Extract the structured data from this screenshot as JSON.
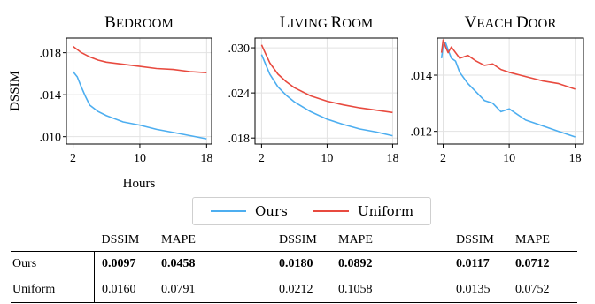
{
  "chart_data": [
    {
      "type": "line",
      "title": "Bedroom",
      "xlabel": "Hours",
      "ylabel": "DSSIM",
      "xlim": [
        1.2,
        18.6
      ],
      "ylim": [
        0.0093,
        0.0194
      ],
      "xticks": [
        2,
        10,
        18
      ],
      "xtick_labels": [
        "2",
        "10",
        "18"
      ],
      "yticks": [
        0.01,
        0.014,
        0.018
      ],
      "ytick_labels": [
        ".010",
        ".014",
        ".018"
      ],
      "grid": true,
      "series": [
        {
          "name": "Ours",
          "color": "#4daef0",
          "x": [
            2,
            2.5,
            3,
            3.5,
            4,
            5,
            6,
            8,
            10,
            12,
            14,
            16,
            18
          ],
          "y": [
            0.0162,
            0.0157,
            0.0147,
            0.0138,
            0.013,
            0.0124,
            0.012,
            0.0114,
            0.0111,
            0.0107,
            0.0104,
            0.0101,
            0.0098
          ]
        },
        {
          "name": "Uniform",
          "color": "#e84a3f",
          "x": [
            2,
            3,
            4,
            5,
            6,
            8,
            10,
            12,
            14,
            16,
            18
          ],
          "y": [
            0.0186,
            0.018,
            0.0176,
            0.0173,
            0.0171,
            0.0169,
            0.0167,
            0.0165,
            0.0164,
            0.0162,
            0.0161
          ]
        }
      ]
    },
    {
      "type": "line",
      "title": "Living Room",
      "xlabel": "",
      "ylabel": "",
      "xlim": [
        1.2,
        18.6
      ],
      "ylim": [
        0.0172,
        0.0313
      ],
      "xticks": [
        2,
        10,
        18
      ],
      "xtick_labels": [
        "2",
        "10",
        "18"
      ],
      "yticks": [
        0.018,
        0.024,
        0.03
      ],
      "ytick_labels": [
        ".018",
        ".024",
        ".030"
      ],
      "grid": true,
      "series": [
        {
          "name": "Ours",
          "color": "#4daef0",
          "x": [
            2,
            2.5,
            3,
            4,
            5,
            6,
            8,
            10,
            12,
            14,
            16,
            18
          ],
          "y": [
            0.0291,
            0.0278,
            0.0265,
            0.0248,
            0.0237,
            0.0228,
            0.0215,
            0.0205,
            0.0198,
            0.0192,
            0.0188,
            0.0183
          ]
        },
        {
          "name": "Uniform",
          "color": "#e84a3f",
          "x": [
            2,
            2.5,
            3,
            4,
            5,
            6,
            8,
            10,
            12,
            14,
            16,
            18
          ],
          "y": [
            0.0304,
            0.0292,
            0.028,
            0.0265,
            0.0255,
            0.0247,
            0.0236,
            0.0229,
            0.0224,
            0.022,
            0.0217,
            0.0214
          ]
        }
      ]
    },
    {
      "type": "line",
      "title": "Veach Door",
      "xlabel": "",
      "ylabel": "",
      "xlim": [
        1.3,
        19.0
      ],
      "ylim": [
        0.01155,
        0.01532
      ],
      "xticks": [
        2,
        10,
        18
      ],
      "xtick_labels": [
        "2",
        "10",
        "18"
      ],
      "yticks": [
        0.012,
        0.014
      ],
      "ytick_labels": [
        ".012",
        ".014"
      ],
      "grid": true,
      "series": [
        {
          "name": "Ours",
          "color": "#4daef0",
          "x": [
            1.8,
            2.0,
            2.3,
            2.6,
            3.0,
            3.5,
            4,
            5,
            6,
            7,
            8,
            9,
            10,
            12,
            14,
            16,
            18
          ],
          "y": [
            0.0146,
            0.01505,
            0.01515,
            0.0149,
            0.0146,
            0.0145,
            0.0141,
            0.0137,
            0.0134,
            0.0131,
            0.013,
            0.0127,
            0.0128,
            0.0124,
            0.0122,
            0.012,
            0.0118
          ]
        },
        {
          "name": "Uniform",
          "color": "#e84a3f",
          "x": [
            1.8,
            2.0,
            2.3,
            2.6,
            3.0,
            4,
            5,
            6,
            7,
            8,
            9,
            10,
            12,
            14,
            16,
            18
          ],
          "y": [
            0.0148,
            0.01525,
            0.015,
            0.0148,
            0.015,
            0.0146,
            0.0147,
            0.0145,
            0.01435,
            0.0144,
            0.0142,
            0.0141,
            0.01395,
            0.0138,
            0.0137,
            0.0135
          ]
        }
      ]
    }
  ],
  "legend": {
    "items": [
      {
        "label": "Ours",
        "color": "#4daef0"
      },
      {
        "label": "Uniform",
        "color": "#e84a3f"
      }
    ]
  },
  "table": {
    "header": [
      {
        "a": "DSSIM",
        "b": "MAPE"
      },
      {
        "a": "DSSIM",
        "b": "MAPE"
      },
      {
        "a": "DSSIM",
        "b": "MAPE"
      }
    ],
    "rows": [
      {
        "label": "Ours",
        "values": [
          "0.0097",
          "0.0458",
          "0.0180",
          "0.0892",
          "0.0117",
          "0.0712"
        ],
        "bold": true
      },
      {
        "label": "Uniform",
        "values": [
          "0.0160",
          "0.0791",
          "0.0212",
          "0.1058",
          "0.0135",
          "0.0752"
        ],
        "bold": false
      }
    ]
  }
}
